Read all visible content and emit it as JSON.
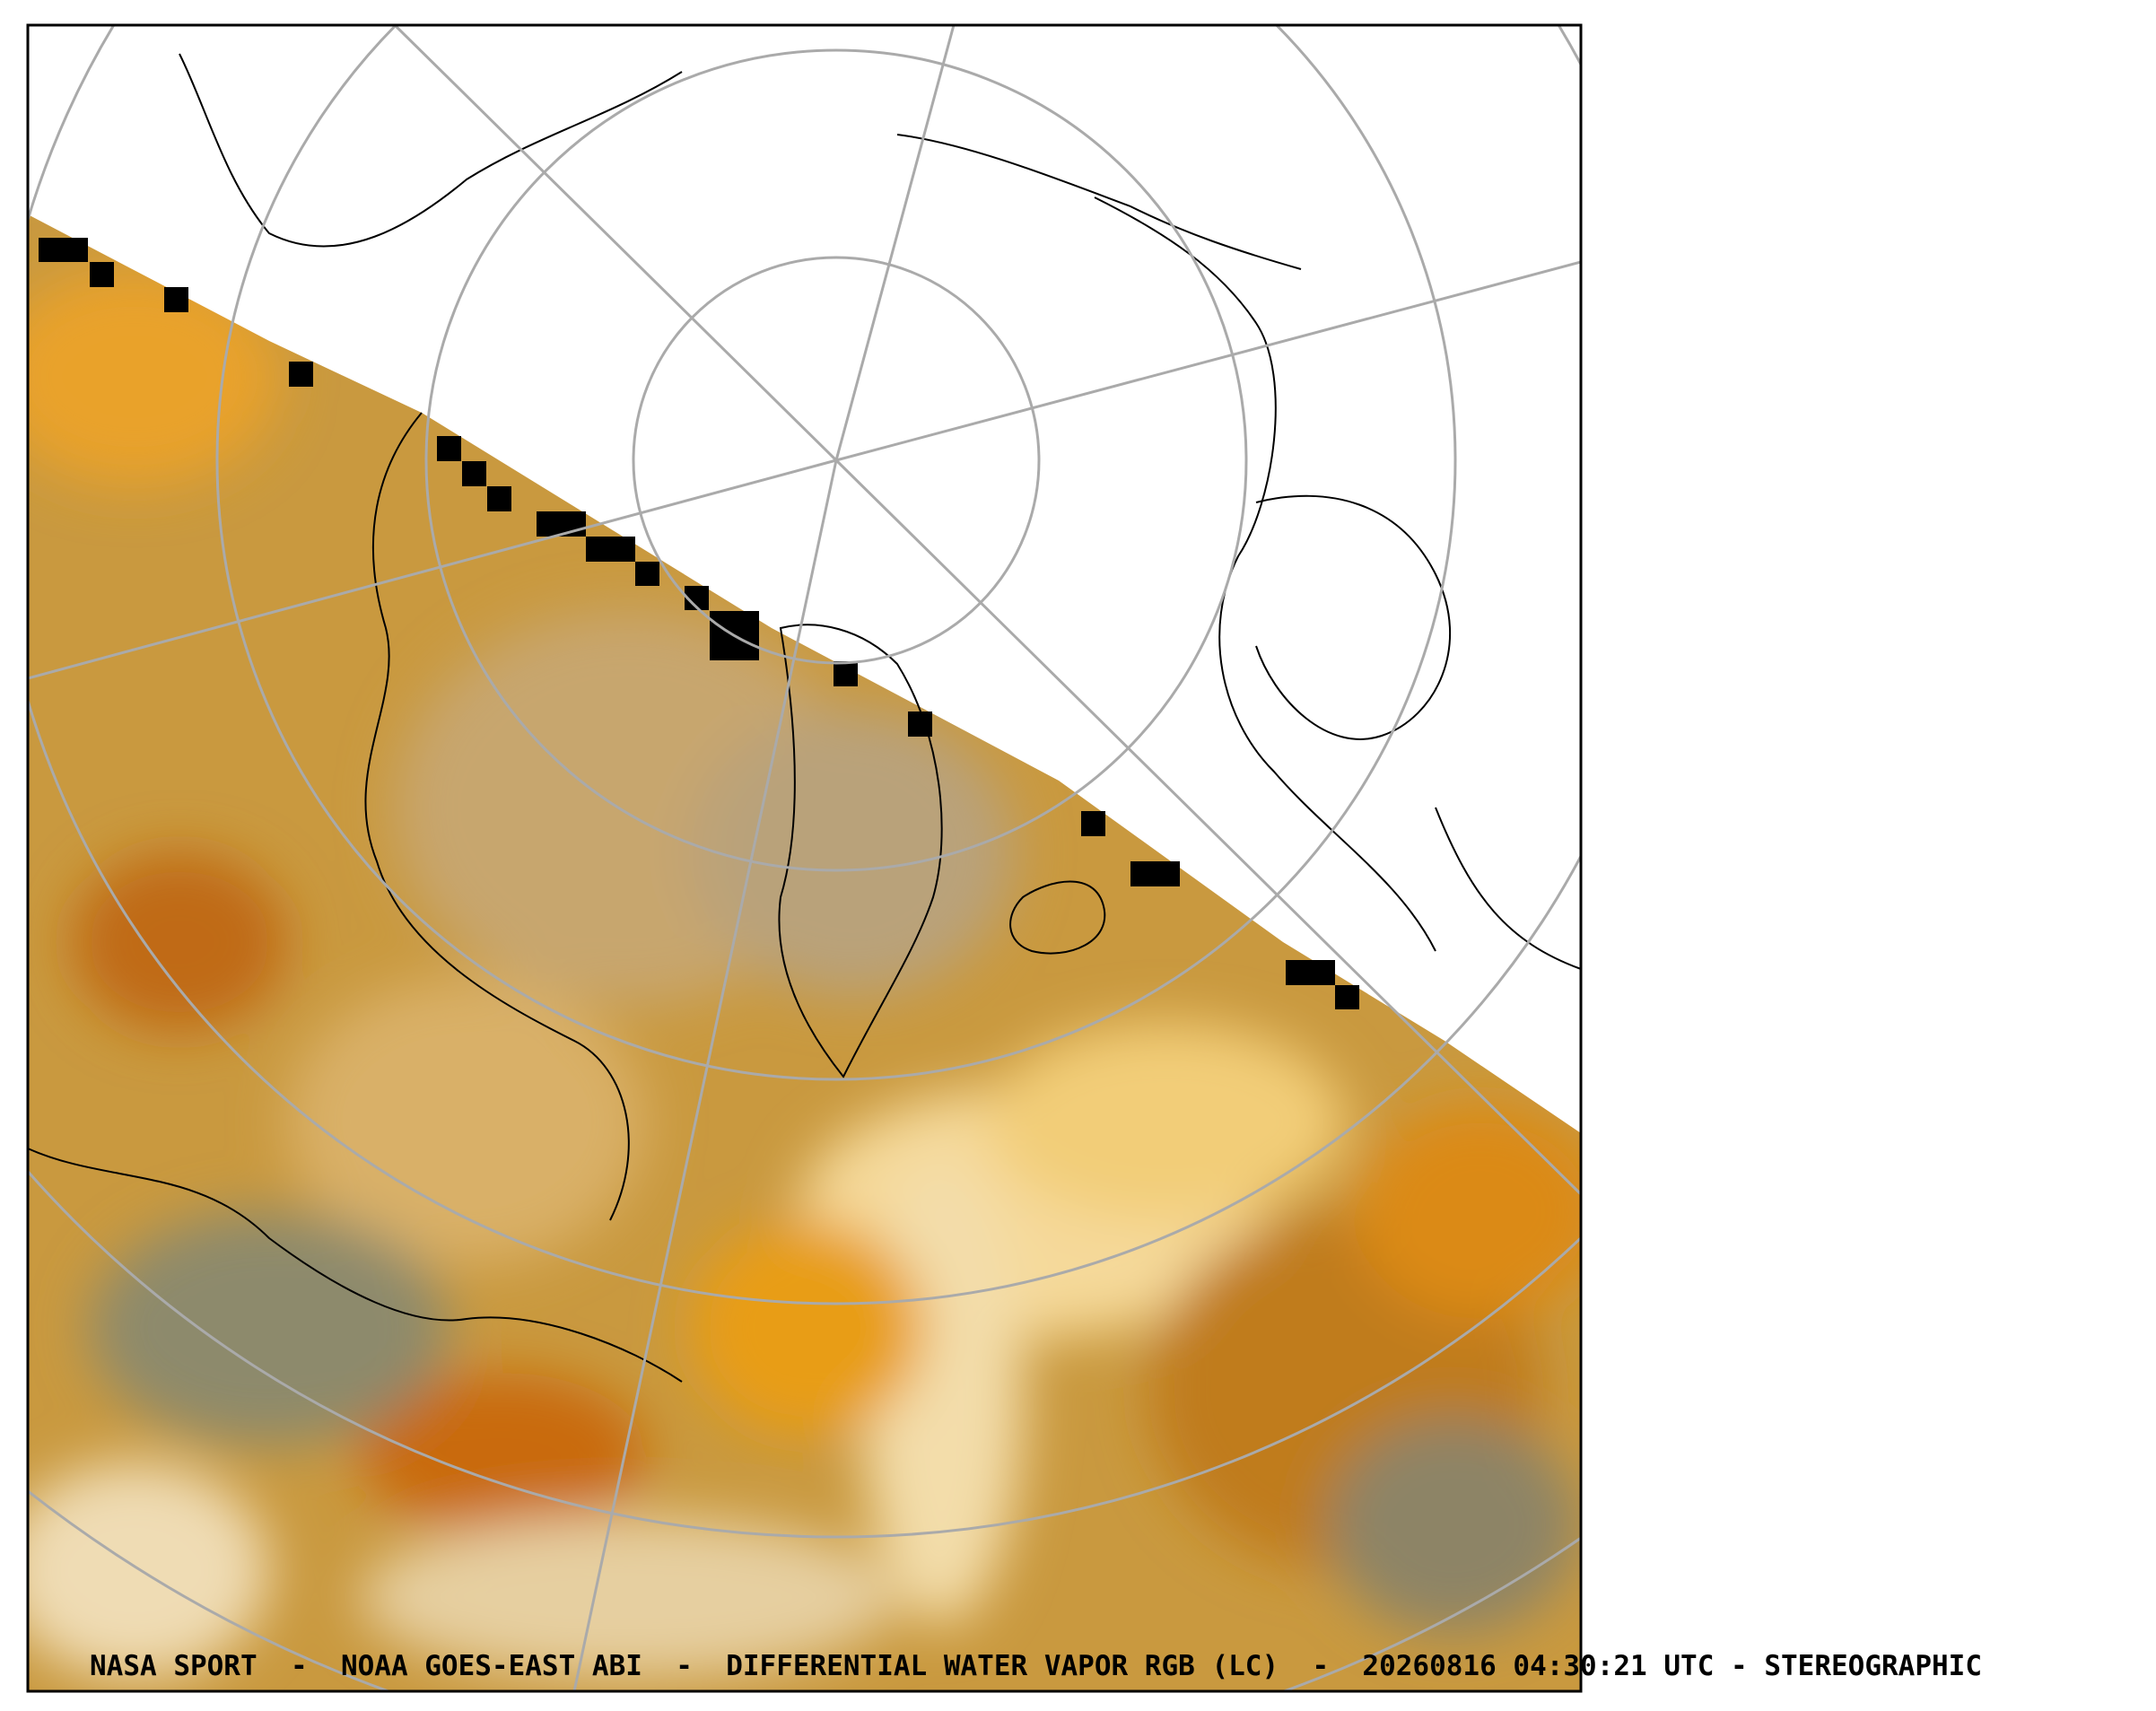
{
  "caption": "NASA SPORT  -  NOAA GOES-EAST ABI  -  DIFFERENTIAL WATER VAPOR RGB (LC)  -  20260816 04:30:21 UTC - STEREOGRAPHIC"
}
